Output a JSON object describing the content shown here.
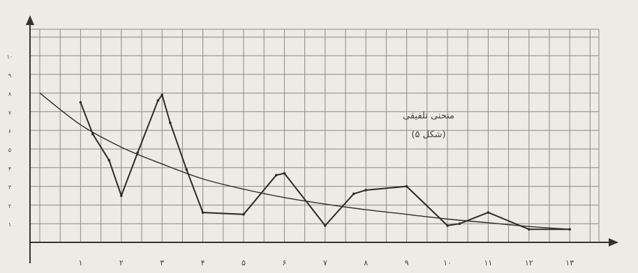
{
  "chart_data": {
    "type": "line",
    "title": "منحنی تلفیقی",
    "subtitle": "(شکل ۵)",
    "x_tick_labels": [
      "۱",
      "۲",
      "۳",
      "۴",
      "۵",
      "۶",
      "۷",
      "۸",
      "۹",
      "۱۰",
      "۱۱",
      "۱۲",
      "۱۳"
    ],
    "y_tick_labels": [
      "۱",
      "۲",
      "۳",
      "۴",
      "۵",
      "۶",
      "۷",
      "۸",
      "۹",
      "۱۰"
    ],
    "xlim": [
      0,
      13.5
    ],
    "ylim": [
      0,
      10.6
    ],
    "grid": true,
    "series": [
      {
        "style": "zigzag",
        "x": [
          1.0,
          1.3,
          1.7,
          2.0,
          2.4,
          2.9,
          3.0,
          3.2,
          3.6,
          4.0,
          5.0,
          5.8,
          6.0,
          7.0,
          7.7,
          8.0,
          9.0,
          10.0,
          10.3,
          11.0,
          12.0,
          13.0
        ],
        "y": [
          7.5,
          5.8,
          4.4,
          2.5,
          4.8,
          7.6,
          7.9,
          6.4,
          3.9,
          1.6,
          1.5,
          3.6,
          3.7,
          0.9,
          2.6,
          2.8,
          3.0,
          0.9,
          1.0,
          1.6,
          0.7,
          0.7
        ]
      },
      {
        "style": "smooth",
        "x": [
          0,
          1,
          2,
          3,
          4,
          5,
          6,
          7,
          8,
          9,
          10,
          11,
          12,
          13
        ],
        "y": [
          8.0,
          6.3,
          5.1,
          4.2,
          3.4,
          2.85,
          2.4,
          2.05,
          1.75,
          1.5,
          1.25,
          1.05,
          0.85,
          0.7
        ]
      }
    ]
  }
}
